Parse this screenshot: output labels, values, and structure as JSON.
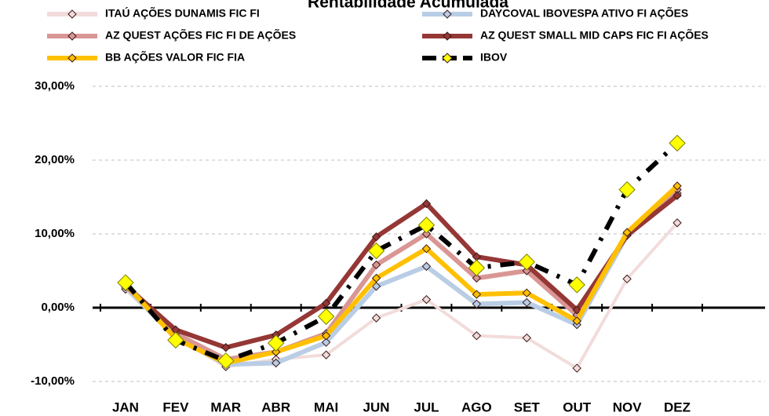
{
  "chart_data": {
    "type": "line",
    "title": "Rentabilidade Acumulada",
    "categories": [
      "JAN",
      "FEV",
      "MAR",
      "ABR",
      "MAI",
      "JUN",
      "JUL",
      "AGO",
      "SET",
      "OUT",
      "NOV",
      "DEZ"
    ],
    "series": [
      {
        "name": "ITAÚ AÇÕES DUNAMIS FIC FI",
        "color": "#f2dcdb",
        "values": [
          2.5,
          -4.0,
          -8.0,
          -7.0,
          -6.4,
          -1.4,
          1.1,
          -3.8,
          -4.1,
          -8.2,
          3.9,
          11.5
        ]
      },
      {
        "name": "DAYCOVAL IBOVESPA ATIVO FI AÇÕES",
        "color": "#b9cde5",
        "values": [
          2.8,
          -4.0,
          -7.7,
          -7.5,
          -4.7,
          2.9,
          5.6,
          0.5,
          0.7,
          -2.3,
          9.8,
          15.5
        ]
      },
      {
        "name": "AZ QUEST AÇÕES FIC FI DE AÇÕES",
        "color": "#d99694",
        "values": [
          3.0,
          -3.5,
          -7.0,
          -6.0,
          -3.5,
          5.8,
          10.0,
          4.0,
          5.0,
          -1.0,
          10.0,
          16.0
        ]
      },
      {
        "name": "AZ QUEST SMALL MID CAPS FIC FI AÇÕES",
        "color": "#953735",
        "values": [
          3.0,
          -3.0,
          -5.4,
          -3.7,
          0.6,
          9.6,
          14.1,
          6.9,
          5.8,
          -0.3,
          9.8,
          15.2
        ]
      },
      {
        "name": "BB AÇÕES VALOR FIC FIA",
        "color": "#ffc000",
        "values": [
          3.2,
          -4.2,
          -7.5,
          -6.0,
          -3.8,
          4.0,
          8.0,
          1.8,
          2.0,
          -1.8,
          10.2,
          16.5
        ]
      },
      {
        "name": "IBOV",
        "color": "#000000",
        "marker_color": "#ffff00",
        "values": [
          3.4,
          -4.4,
          -7.2,
          -4.8,
          -1.2,
          7.7,
          11.2,
          5.4,
          6.2,
          3.1,
          16.0,
          22.3
        ]
      }
    ],
    "ylim": [
      -10,
      30
    ],
    "yticks": [
      {
        "value": -10,
        "label": "-10,00%"
      },
      {
        "value": 0,
        "label": "0,00%"
      },
      {
        "value": 10,
        "label": "10,00%"
      },
      {
        "value": 20,
        "label": "20,00%"
      },
      {
        "value": 30,
        "label": "30,00%"
      }
    ],
    "grid": true
  }
}
